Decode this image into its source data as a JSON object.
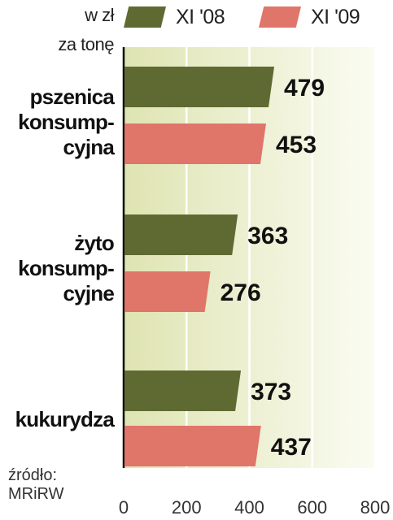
{
  "unit": [
    "w zł",
    "za tonę"
  ],
  "source": [
    "źródło:",
    "MRiRW"
  ],
  "colors": {
    "series_2008": "#5e6a32",
    "series_2009": "#e0756a",
    "plot_bg_left": "#dfe4b2",
    "plot_bg_right": "#fbfcf2"
  },
  "chart_data": {
    "type": "bar",
    "orientation": "horizontal",
    "categories": [
      "pszenica konsump-cyjna",
      "żyto konsump-cyjne",
      "kukurydza"
    ],
    "category_lines": [
      [
        "pszenica",
        "konsump-",
        "cyjna"
      ],
      [
        "żyto",
        "konsump-",
        "cyjne"
      ],
      [
        "kukurydza"
      ]
    ],
    "series": [
      {
        "name": "XI '08",
        "values": [
          479,
          363,
          373
        ]
      },
      {
        "name": "XI '09",
        "values": [
          453,
          276,
          437
        ]
      }
    ],
    "xlim": [
      0,
      800
    ],
    "xticks": [
      0,
      200,
      400,
      600,
      800
    ],
    "grid": true,
    "legend_position": "top"
  }
}
